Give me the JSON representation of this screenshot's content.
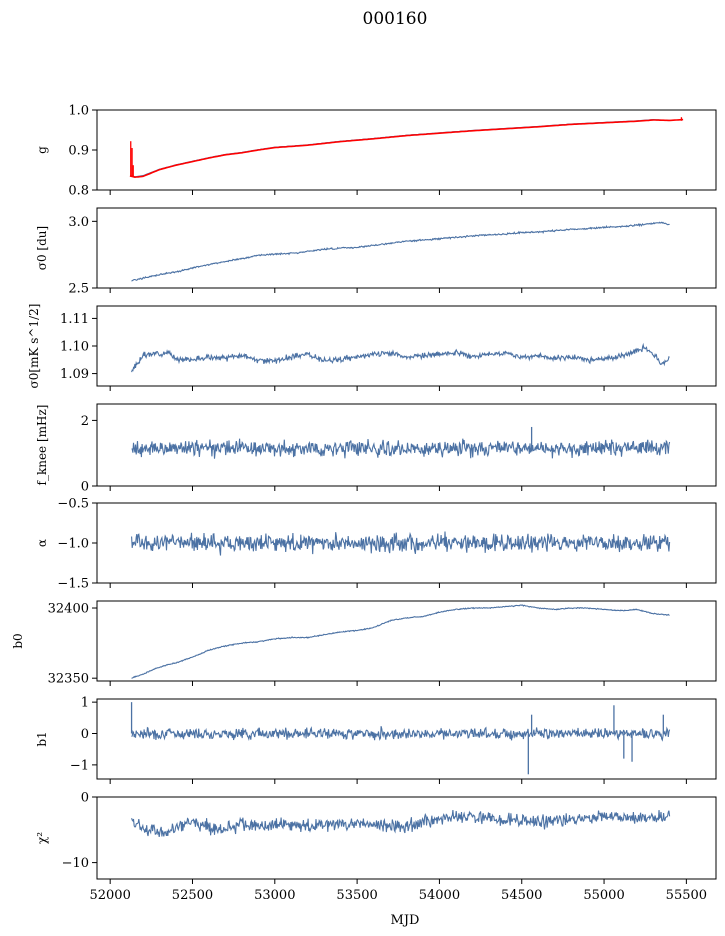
{
  "figure_title": "000160",
  "chart_data": [
    {
      "type": "line",
      "ylabel": "g",
      "ylim": [
        0.8,
        1.0
      ],
      "yticks": [
        0.8,
        0.9,
        1.0
      ],
      "ytick_labels": [
        "0.8",
        "0.9",
        "1.0"
      ],
      "series": [
        {
          "name": "",
          "color": "#4c72a4",
          "x": [
            52130,
            52150,
            52200,
            52300,
            52400,
            52500,
            52600,
            52700,
            52800,
            52900,
            53000,
            53200,
            53400,
            53600,
            53800,
            54000,
            54200,
            54400,
            54600,
            54800,
            55000,
            55200,
            55300,
            55400
          ],
          "y": [
            0.836,
            0.833,
            0.836,
            0.852,
            0.863,
            0.872,
            0.881,
            0.889,
            0.894,
            0.901,
            0.907,
            0.913,
            0.922,
            0.929,
            0.937,
            0.943,
            0.949,
            0.954,
            0.959,
            0.965,
            0.969,
            0.973,
            0.976,
            0.974
          ]
        },
        {
          "name": "",
          "color": "#ff0000",
          "x": [
            52120,
            52135,
            52150,
            52200,
            52300,
            52400,
            52500,
            52600,
            52700,
            52800,
            52900,
            53000,
            53200,
            53400,
            53600,
            53800,
            54000,
            54200,
            54400,
            54600,
            54800,
            55000,
            55200,
            55300,
            55400,
            55480
          ],
          "y": [
            0.835,
            0.834,
            0.832,
            0.834,
            0.851,
            0.862,
            0.871,
            0.88,
            0.888,
            0.893,
            0.9,
            0.906,
            0.912,
            0.921,
            0.928,
            0.936,
            0.942,
            0.948,
            0.953,
            0.958,
            0.964,
            0.968,
            0.972,
            0.975,
            0.974,
            0.976
          ],
          "spikes": [
            {
              "x": 52125,
              "y0": 0.834,
              "y1": 0.922
            },
            {
              "x": 52133,
              "y0": 0.834,
              "y1": 0.905
            },
            {
              "x": 52140,
              "y0": 0.833,
              "y1": 0.862
            },
            {
              "x": 55470,
              "y0": 0.973,
              "y1": 0.982
            }
          ]
        }
      ]
    },
    {
      "type": "line",
      "ylabel": "σ0 [du]",
      "ylim": [
        2.5,
        3.1
      ],
      "yticks": [
        2.5,
        3.0
      ],
      "ytick_labels": [
        "2.5",
        "3.0"
      ],
      "series": [
        {
          "name": "",
          "color": "#4c72a4",
          "x": [
            52130,
            52200,
            52300,
            52400,
            52500,
            52600,
            52700,
            52800,
            52900,
            53000,
            53100,
            53200,
            53300,
            53400,
            53500,
            53600,
            53700,
            53800,
            53900,
            54000,
            54100,
            54200,
            54300,
            54400,
            54500,
            54600,
            54700,
            54800,
            54900,
            55000,
            55100,
            55200,
            55300,
            55350,
            55400
          ],
          "y": [
            2.555,
            2.575,
            2.6,
            2.62,
            2.65,
            2.675,
            2.7,
            2.72,
            2.745,
            2.755,
            2.76,
            2.775,
            2.79,
            2.8,
            2.805,
            2.82,
            2.835,
            2.85,
            2.86,
            2.87,
            2.88,
            2.89,
            2.9,
            2.905,
            2.915,
            2.92,
            2.93,
            2.94,
            2.945,
            2.955,
            2.96,
            2.97,
            2.985,
            2.99,
            2.975
          ],
          "noise": 0.004,
          "seed": 2
        }
      ]
    },
    {
      "type": "line",
      "ylabel": "σ0[mK s^1/2]",
      "ylim": [
        1.0855,
        1.1145
      ],
      "yticks": [
        1.09,
        1.1,
        1.11
      ],
      "ytick_labels": [
        "1.09",
        "1.10",
        "1.11"
      ],
      "series": [
        {
          "name": "",
          "color": "#4c72a4",
          "x": [
            52130,
            52150,
            52200,
            52300,
            52350,
            52400,
            52500,
            52600,
            52700,
            52800,
            52900,
            53000,
            53100,
            53200,
            53300,
            53400,
            53500,
            53600,
            53700,
            53800,
            53900,
            54000,
            54100,
            54200,
            54300,
            54400,
            54500,
            54600,
            54700,
            54800,
            54900,
            55000,
            55100,
            55200,
            55250,
            55300,
            55350,
            55400
          ],
          "y": [
            1.0905,
            1.0925,
            1.0965,
            1.0975,
            1.0975,
            1.0955,
            1.095,
            1.096,
            1.0955,
            1.0965,
            1.095,
            1.0945,
            1.096,
            1.097,
            1.095,
            1.095,
            1.096,
            1.097,
            1.0975,
            1.096,
            1.0965,
            1.097,
            1.0975,
            1.096,
            1.097,
            1.0975,
            1.096,
            1.0965,
            1.0955,
            1.096,
            1.095,
            1.0955,
            1.096,
            1.0985,
            1.0995,
            1.097,
            1.0935,
            1.0955
          ],
          "noise": 0.0007,
          "seed": 3
        }
      ]
    },
    {
      "type": "line",
      "ylabel": "f_knee [mHz]",
      "ylim": [
        0,
        2.5
      ],
      "yticks": [
        0,
        2
      ],
      "ytick_labels": [
        "0",
        "2"
      ],
      "series": [
        {
          "name": "",
          "color": "#4c72a4",
          "x": [
            52130,
            55400
          ],
          "y": [
            1.15,
            1.15
          ],
          "noise": 0.17,
          "seed": 4,
          "spikes": [
            {
              "x": 54560,
              "y0": 1.15,
              "y1": 1.8
            }
          ]
        }
      ]
    },
    {
      "type": "line",
      "ylabel": "α",
      "ylim": [
        -1.5,
        -0.5
      ],
      "yticks": [
        -1.5,
        -1.0,
        -0.5
      ],
      "ytick_labels": [
        "−1.5",
        "−1.0",
        "−0.5"
      ],
      "series": [
        {
          "name": "",
          "color": "#4c72a4",
          "x": [
            52130,
            55400
          ],
          "y": [
            -1.0,
            -1.0
          ],
          "noise": 0.08,
          "seed": 5
        }
      ]
    },
    {
      "type": "line",
      "ylabel": "b0",
      "ylim": [
        32348,
        32405
      ],
      "yticks": [
        32350,
        32400
      ],
      "ytick_labels": [
        "32350",
        "32400"
      ],
      "series": [
        {
          "name": "",
          "color": "#4c72a4",
          "x": [
            52130,
            52200,
            52300,
            52400,
            52500,
            52600,
            52700,
            52800,
            52900,
            53000,
            53100,
            53200,
            53300,
            53400,
            53500,
            53600,
            53700,
            53800,
            53900,
            54000,
            54100,
            54200,
            54300,
            54400,
            54500,
            54600,
            54700,
            54800,
            54900,
            55000,
            55100,
            55200,
            55300,
            55400
          ],
          "y": [
            32350,
            32353,
            32358,
            32361,
            32365,
            32370,
            32373,
            32375,
            32376,
            32378,
            32379,
            32379,
            32381,
            32383,
            32384,
            32386,
            32391,
            32393,
            32394,
            32397,
            32399,
            32400,
            32400,
            32401,
            32402,
            32400,
            32399,
            32400,
            32400,
            32399,
            32398,
            32399,
            32396,
            32395
          ],
          "noise": 0.25,
          "seed": 6
        }
      ]
    },
    {
      "type": "line",
      "ylabel": "b1",
      "ylim": [
        -1.45,
        1.1
      ],
      "yticks": [
        -1,
        0,
        1
      ],
      "ytick_labels": [
        "−1",
        "0",
        "1"
      ],
      "series": [
        {
          "name": "",
          "color": "#4c72a4",
          "x": [
            52130,
            55400
          ],
          "y": [
            0.0,
            0.0
          ],
          "noise": 0.12,
          "seed": 7,
          "spikes": [
            {
              "x": 52130,
              "y0": 0.0,
              "y1": 1.0
            },
            {
              "x": 54540,
              "y0": 0.0,
              "y1": -1.3
            },
            {
              "x": 54560,
              "y0": 0.0,
              "y1": 0.6
            },
            {
              "x": 55060,
              "y0": 0.0,
              "y1": 0.9
            },
            {
              "x": 55120,
              "y0": 0.0,
              "y1": -0.8
            },
            {
              "x": 55170,
              "y0": 0.0,
              "y1": -0.9
            },
            {
              "x": 55360,
              "y0": 0.0,
              "y1": 0.6
            }
          ]
        }
      ]
    },
    {
      "type": "line",
      "ylabel": "χ²",
      "ylim": [
        -12.5,
        0
      ],
      "yticks": [
        -10,
        0
      ],
      "ytick_labels": [
        "−10",
        "0"
      ],
      "series": [
        {
          "name": "",
          "color": "#4c72a4",
          "x": [
            52130,
            52200,
            52300,
            52400,
            52500,
            52600,
            52700,
            52800,
            52900,
            53000,
            53200,
            53400,
            53600,
            53800,
            54000,
            54200,
            54400,
            54600,
            54800,
            55000,
            55200,
            55400
          ],
          "y": [
            -3.5,
            -5.0,
            -5.5,
            -4.8,
            -4.0,
            -4.5,
            -5.0,
            -4.0,
            -4.5,
            -4.2,
            -4.5,
            -4.0,
            -4.2,
            -4.5,
            -3.2,
            -3.0,
            -3.5,
            -3.8,
            -3.5,
            -3.0,
            -3.2,
            -3.0
          ],
          "noise": 0.7,
          "seed": 8
        }
      ]
    }
  ],
  "x_axis": {
    "label": "MJD",
    "xlim": [
      51920,
      55680
    ],
    "ticks": [
      52000,
      52500,
      53000,
      53500,
      54000,
      54500,
      55000,
      55500
    ],
    "tick_labels": [
      "52000",
      "52500",
      "53000",
      "53500",
      "54000",
      "54500",
      "55000",
      "55500"
    ]
  }
}
